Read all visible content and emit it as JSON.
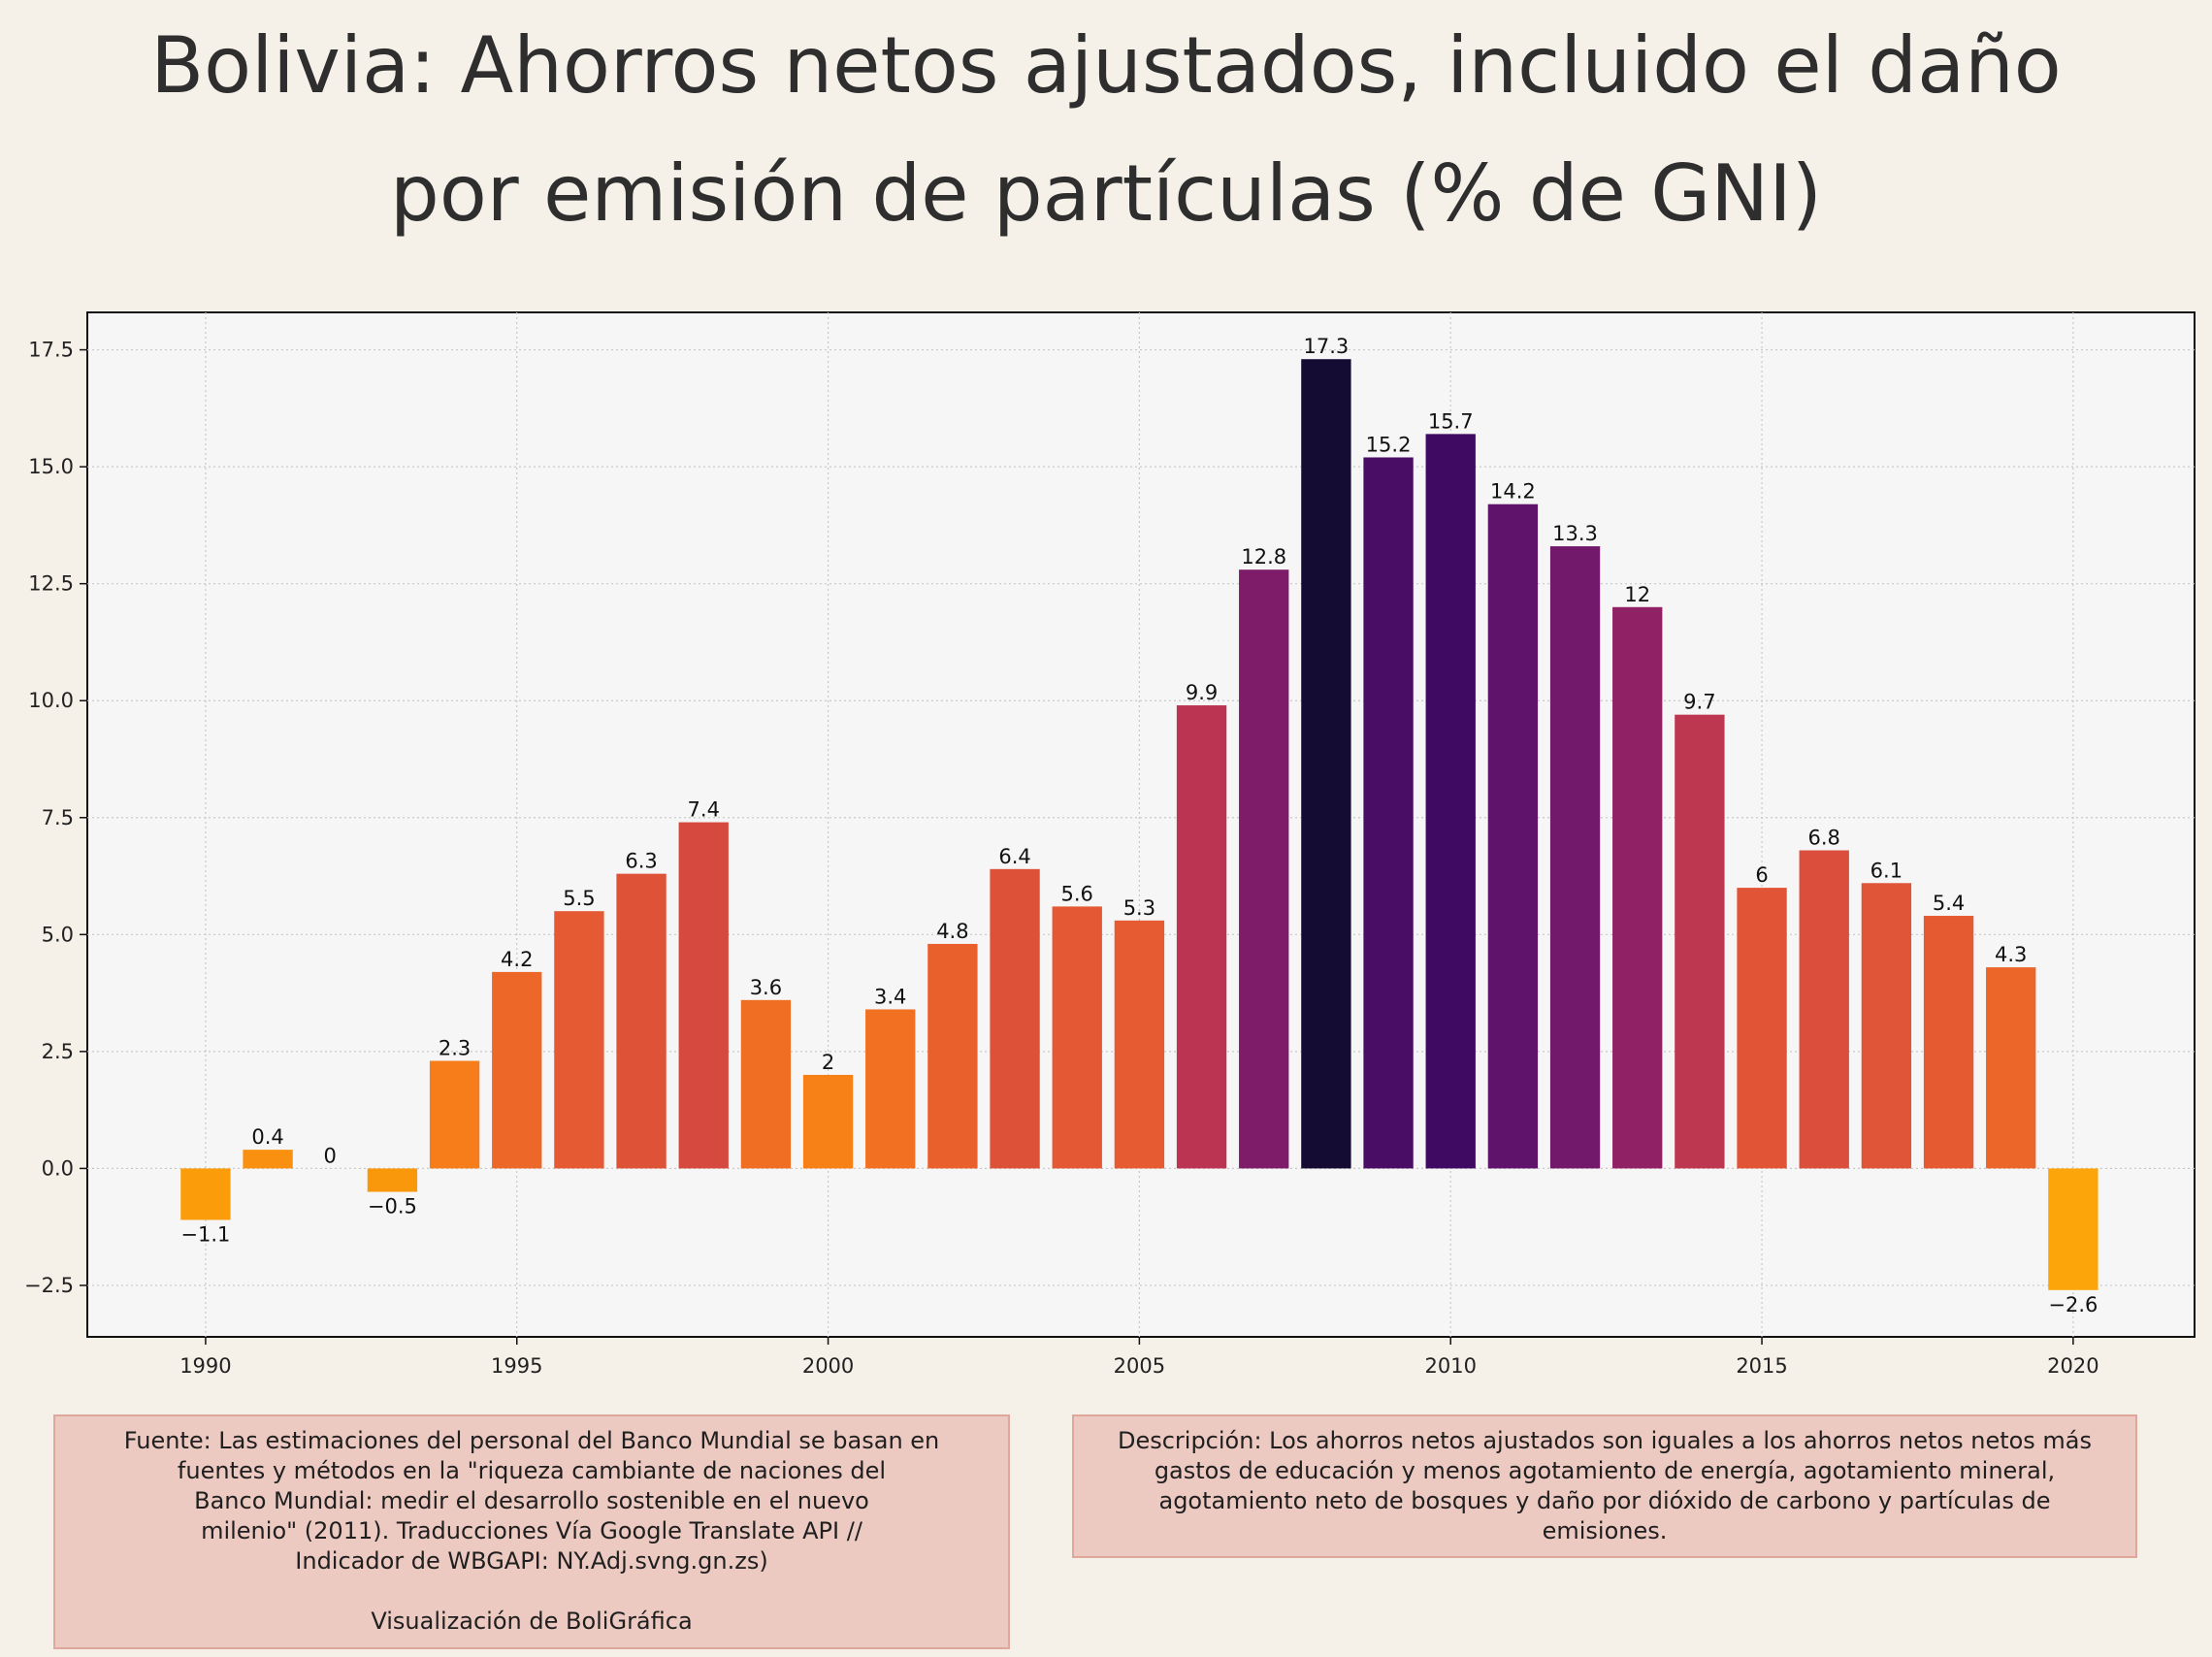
{
  "title": "Bolivia:  Ahorros netos ajustados, incluido el daño\npor emisión de partículas (% de GNI)",
  "chart_data": {
    "type": "bar",
    "title": "Bolivia:  Ahorros netos ajustados, incluido el daño por emisión de partículas (% de GNI)",
    "xlabel": "",
    "ylabel": "",
    "x": [
      1990,
      1991,
      1992,
      1993,
      1994,
      1995,
      1996,
      1997,
      1998,
      1999,
      2000,
      2001,
      2002,
      2003,
      2004,
      2005,
      2006,
      2007,
      2008,
      2009,
      2010,
      2011,
      2012,
      2013,
      2014,
      2015,
      2016,
      2017,
      2018,
      2019,
      2020
    ],
    "values": [
      -1.1,
      0.4,
      0,
      -0.5,
      2.3,
      4.2,
      5.5,
      6.3,
      7.4,
      3.6,
      2,
      3.4,
      4.8,
      6.4,
      5.6,
      5.3,
      9.9,
      12.8,
      17.3,
      15.2,
      15.7,
      14.2,
      13.3,
      12,
      9.7,
      6,
      6.8,
      6.1,
      5.4,
      4.3,
      -2.6
    ],
    "data_labels": [
      "−1.1",
      "0.4",
      "0",
      "−0.5",
      "2.3",
      "4.2",
      "5.5",
      "6.3",
      "7.4",
      "3.6",
      "2",
      "3.4",
      "4.8",
      "6.4",
      "5.6",
      "5.3",
      "9.9",
      "12.8",
      "17.3",
      "15.2",
      "15.7",
      "14.2",
      "13.3",
      "12",
      "9.7",
      "6",
      "6.8",
      "6.1",
      "5.4",
      "4.3",
      "−2.6"
    ],
    "x_ticks": [
      1990,
      1995,
      2000,
      2005,
      2010,
      2015,
      2020
    ],
    "x_tick_labels": [
      "1990",
      "1995",
      "2000",
      "2005",
      "2010",
      "2015",
      "2020"
    ],
    "y_ticks": [
      -2.5,
      0,
      2.5,
      5,
      7.5,
      10,
      12.5,
      15,
      17.5
    ],
    "y_tick_labels": [
      "−2.5",
      "0.0",
      "2.5",
      "5.0",
      "7.5",
      "10.0",
      "12.5",
      "15.0",
      "17.5"
    ],
    "xlim": [
      1988.1,
      2021.95
    ],
    "ylim": [
      -3.6,
      18.3
    ],
    "grid": true,
    "colormap": "inferno (reversed, by value)"
  },
  "notes": {
    "source": "Fuente: Las estimaciones del personal del Banco Mundial se basan en\nfuentes y métodos en la \"riqueza cambiante de naciones del\nBanco Mundial: medir el desarrollo sostenible en el nuevo\nmilenio\" (2011). Traducciones Vía Google Translate API //\nIndicador de WBGAPI: NY.Adj.svng.gn.zs)\n\nVisualización de BoliGráfica",
    "description": "Descripción: Los ahorros netos ajustados son iguales a los ahorros netos netos más\ngastos de educación y menos agotamiento de energía, agotamiento mineral,\nagotamiento neto de bosques y daño por dióxido de carbono y partículas de\nemisiones."
  }
}
